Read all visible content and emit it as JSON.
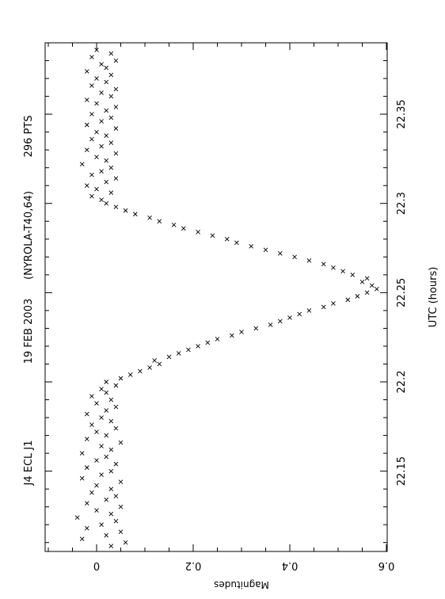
{
  "chart_data": {
    "type": "scatter",
    "orientation": "rotated 90 degrees (portrait page)",
    "header": {
      "object": "J4 ECL J1",
      "date": "19 FEB 2003",
      "observer": "(NYROLA-T40,64)",
      "points": "296 PTS"
    },
    "xlabel": "UTC (hours)",
    "ylabel": "Magnitudes",
    "xlim": [
      22.105,
      22.39
    ],
    "ylim": [
      -0.1,
      0.63
    ],
    "y_inverted": false,
    "x_ticks": [
      "22.15",
      "22.2",
      "22.25",
      "22.3",
      "22.35"
    ],
    "y_ticks": [
      "0",
      "0.2",
      "0.4",
      "0.6"
    ],
    "marker": "x",
    "grid": false,
    "legend": "none",
    "series": [
      {
        "values_description": "eclipse light curve",
        "points": [
          [
            22.108,
            0.03
          ],
          [
            22.11,
            0.06
          ],
          [
            22.112,
            -0.03
          ],
          [
            22.114,
            0.02
          ],
          [
            22.116,
            0.05
          ],
          [
            22.118,
            -0.02
          ],
          [
            22.12,
            0.01
          ],
          [
            22.122,
            0.04
          ],
          [
            22.124,
            -0.04
          ],
          [
            22.126,
            0.03
          ],
          [
            22.128,
            0.0
          ],
          [
            22.13,
            0.05
          ],
          [
            22.132,
            -0.02
          ],
          [
            22.134,
            0.02
          ],
          [
            22.136,
            0.04
          ],
          [
            22.138,
            -0.01
          ],
          [
            22.14,
            0.03
          ],
          [
            22.142,
            0.0
          ],
          [
            22.144,
            0.05
          ],
          [
            22.146,
            -0.03
          ],
          [
            22.148,
            0.01
          ],
          [
            22.15,
            0.03
          ],
          [
            22.152,
            -0.02
          ],
          [
            22.154,
            0.04
          ],
          [
            22.156,
            0.0
          ],
          [
            22.158,
            0.02
          ],
          [
            22.16,
            -0.03
          ],
          [
            22.162,
            0.03
          ],
          [
            22.164,
            0.01
          ],
          [
            22.166,
            0.05
          ],
          [
            22.168,
            -0.02
          ],
          [
            22.17,
            0.02
          ],
          [
            22.172,
            0.0
          ],
          [
            22.174,
            0.04
          ],
          [
            22.176,
            -0.01
          ],
          [
            22.178,
            0.03
          ],
          [
            22.18,
            0.01
          ],
          [
            22.182,
            -0.02
          ],
          [
            22.184,
            0.02
          ],
          [
            22.186,
            0.04
          ],
          [
            22.188,
            0.0
          ],
          [
            22.19,
            0.03
          ],
          [
            22.192,
            -0.01
          ],
          [
            22.194,
            0.02
          ],
          [
            22.196,
            0.01
          ],
          [
            22.198,
            0.04
          ],
          [
            22.2,
            0.02
          ],
          [
            22.202,
            0.05
          ],
          [
            22.204,
            0.07
          ],
          [
            22.206,
            0.09
          ],
          [
            22.208,
            0.11
          ],
          [
            22.21,
            0.13
          ],
          [
            22.212,
            0.12
          ],
          [
            22.214,
            0.15
          ],
          [
            22.216,
            0.17
          ],
          [
            22.218,
            0.19
          ],
          [
            22.22,
            0.21
          ],
          [
            22.222,
            0.23
          ],
          [
            22.224,
            0.25
          ],
          [
            22.226,
            0.28
          ],
          [
            22.228,
            0.3
          ],
          [
            22.23,
            0.33
          ],
          [
            22.232,
            0.36
          ],
          [
            22.234,
            0.38
          ],
          [
            22.236,
            0.4
          ],
          [
            22.238,
            0.42
          ],
          [
            22.24,
            0.44
          ],
          [
            22.242,
            0.47
          ],
          [
            22.244,
            0.49
          ],
          [
            22.246,
            0.52
          ],
          [
            22.248,
            0.54
          ],
          [
            22.25,
            0.56
          ],
          [
            22.252,
            0.58
          ],
          [
            22.254,
            0.57
          ],
          [
            22.256,
            0.55
          ],
          [
            22.258,
            0.56
          ],
          [
            22.26,
            0.53
          ],
          [
            22.262,
            0.51
          ],
          [
            22.264,
            0.49
          ],
          [
            22.266,
            0.47
          ],
          [
            22.268,
            0.44
          ],
          [
            22.27,
            0.41
          ],
          [
            22.272,
            0.38
          ],
          [
            22.274,
            0.35
          ],
          [
            22.276,
            0.32
          ],
          [
            22.278,
            0.29
          ],
          [
            22.28,
            0.27
          ],
          [
            22.282,
            0.24
          ],
          [
            22.284,
            0.21
          ],
          [
            22.286,
            0.18
          ],
          [
            22.288,
            0.16
          ],
          [
            22.29,
            0.13
          ],
          [
            22.292,
            0.11
          ],
          [
            22.294,
            0.08
          ],
          [
            22.296,
            0.06
          ],
          [
            22.298,
            0.04
          ],
          [
            22.3,
            0.02
          ],
          [
            22.302,
            0.01
          ],
          [
            22.304,
            -0.01
          ],
          [
            22.306,
            0.03
          ],
          [
            22.308,
            0.0
          ],
          [
            22.31,
            -0.02
          ],
          [
            22.312,
            0.02
          ],
          [
            22.314,
            0.04
          ],
          [
            22.316,
            -0.01
          ],
          [
            22.318,
            0.01
          ],
          [
            22.32,
            0.03
          ],
          [
            22.322,
            -0.03
          ],
          [
            22.324,
            0.02
          ],
          [
            22.326,
            0.0
          ],
          [
            22.328,
            0.04
          ],
          [
            22.33,
            -0.02
          ],
          [
            22.332,
            0.01
          ],
          [
            22.334,
            0.03
          ],
          [
            22.336,
            -0.01
          ],
          [
            22.338,
            0.02
          ],
          [
            22.34,
            0.0
          ],
          [
            22.342,
            0.04
          ],
          [
            22.344,
            -0.02
          ],
          [
            22.346,
            0.01
          ],
          [
            22.348,
            0.03
          ],
          [
            22.35,
            -0.01
          ],
          [
            22.352,
            0.02
          ],
          [
            22.354,
            0.04
          ],
          [
            22.356,
            0.0
          ],
          [
            22.358,
            -0.02
          ],
          [
            22.36,
            0.03
          ],
          [
            22.362,
            0.01
          ],
          [
            22.364,
            0.04
          ],
          [
            22.366,
            -0.01
          ],
          [
            22.368,
            0.02
          ],
          [
            22.37,
            0.0
          ],
          [
            22.372,
            0.03
          ],
          [
            22.374,
            -0.02
          ],
          [
            22.376,
            0.02
          ],
          [
            22.378,
            0.01
          ],
          [
            22.38,
            0.04
          ],
          [
            22.382,
            -0.01
          ],
          [
            22.384,
            0.03
          ],
          [
            22.386,
            0.0
          ]
        ]
      }
    ]
  }
}
